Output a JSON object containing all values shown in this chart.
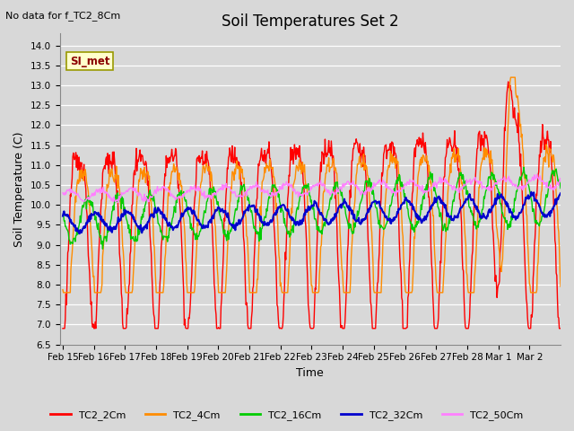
{
  "title": "Soil Temperatures Set 2",
  "xlabel": "Time",
  "ylabel": "Soil Temperature (C)",
  "top_left_note": "No data for f_TC2_8Cm",
  "legend_box_label": "SI_met",
  "ylim": [
    6.5,
    14.3
  ],
  "yticks": [
    6.5,
    7.0,
    7.5,
    8.0,
    8.5,
    9.0,
    9.5,
    10.0,
    10.5,
    11.0,
    11.5,
    12.0,
    12.5,
    13.0,
    13.5,
    14.0
  ],
  "series_colors": {
    "TC2_2Cm": "#ff0000",
    "TC2_4Cm": "#ff8c00",
    "TC2_16Cm": "#00cc00",
    "TC2_32Cm": "#0000cd",
    "TC2_50Cm": "#ff80ff"
  },
  "xtick_labels": [
    "Feb 15",
    "Feb 16",
    "Feb 17",
    "Feb 18",
    "Feb 19",
    "Feb 20",
    "Feb 21",
    "Feb 22",
    "Feb 23",
    "Feb 24",
    "Feb 25",
    "Feb 26",
    "Feb 27",
    "Feb 28",
    "Mar 1",
    "Mar 2"
  ],
  "n_points": 800,
  "background_color": "#d8d8d8",
  "plot_bg_color": "#d8d8d8",
  "grid_color": "#ffffff",
  "title_fontsize": 12,
  "axis_label_fontsize": 9,
  "tick_fontsize": 7.5,
  "note_fontsize": 8,
  "legend_box_facecolor": "#ffffcc",
  "legend_box_edgecolor": "#999900"
}
